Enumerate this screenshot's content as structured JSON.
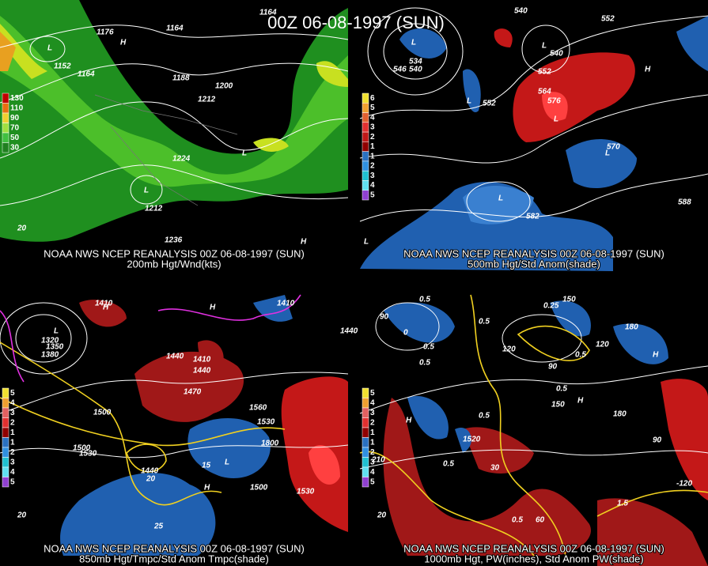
{
  "title": "00Z 06-08-1997 (SUN)",
  "panels": [
    {
      "source": "NOAA NWS NCEP REANALYSIS 00Z 06-08-1997 (SUN)",
      "field": "200mb Hgt/Wnd(kts)",
      "legend": [
        "130",
        "110",
        "90",
        "70",
        "50",
        "30"
      ],
      "labels": [
        "1176",
        "1164",
        "1164",
        "L",
        "1152",
        "1164",
        "H",
        "1188",
        "1200",
        "1212",
        "1224",
        "L",
        "1212",
        "L",
        "1236",
        "20",
        "H"
      ]
    },
    {
      "source": "NOAA NWS NCEP REANALYSIS 00Z 06-08-1997 (SUN)",
      "field": "500mb Hgt/Std Anom(shade)",
      "legend": [
        "6",
        "5",
        "4",
        "3",
        "2",
        "1",
        "1",
        "2",
        "3",
        "4",
        "5"
      ],
      "labels": [
        "540",
        "552",
        "L",
        "534",
        "546",
        "540",
        "L",
        "540",
        "552",
        "564",
        "576",
        "L",
        "552",
        "L",
        "570",
        "L",
        "L",
        "582",
        "588",
        "L",
        "H"
      ]
    },
    {
      "source": "NOAA NWS NCEP REANALYSIS 00Z 06-08-1997 (SUN)",
      "field": "850mb Hgt/Tmpc/Std Anom Tmpc(shade)",
      "legend": [
        "5",
        "4",
        "3",
        "2",
        "1",
        "1",
        "2",
        "3",
        "4",
        "5"
      ],
      "labels": [
        "1410",
        "1410",
        "H",
        "H",
        "L",
        "1320",
        "1350",
        "1380",
        "1440",
        "1410",
        "1440",
        "1470",
        "1440",
        "1560",
        "1530",
        "1500",
        "1500",
        "1530",
        "1800",
        "1440",
        "L",
        "1500",
        "1530",
        "20",
        "25",
        "15",
        "20",
        "H"
      ]
    },
    {
      "source": "NOAA NWS NCEP REANALYSIS 00Z 06-08-1997 (SUN)",
      "field": "1000mb Hgt, PW(inches), Std Anom PW(shade)",
      "legend": [
        "5",
        "4",
        "3",
        "2",
        "1",
        "1",
        "2",
        "3",
        "4",
        "5"
      ],
      "labels": [
        "0.5",
        "150",
        "0.25",
        "0.5",
        "90",
        "0",
        "0.5",
        "0.5",
        "120",
        "120",
        "180",
        "H",
        "90",
        "0.5",
        "0.5",
        "150",
        "180",
        "H",
        "0.5",
        "1520",
        "210",
        "30",
        "0.5",
        "90",
        "-120",
        "1.5",
        "0.5",
        "60",
        "20",
        "H"
      ]
    }
  ]
}
